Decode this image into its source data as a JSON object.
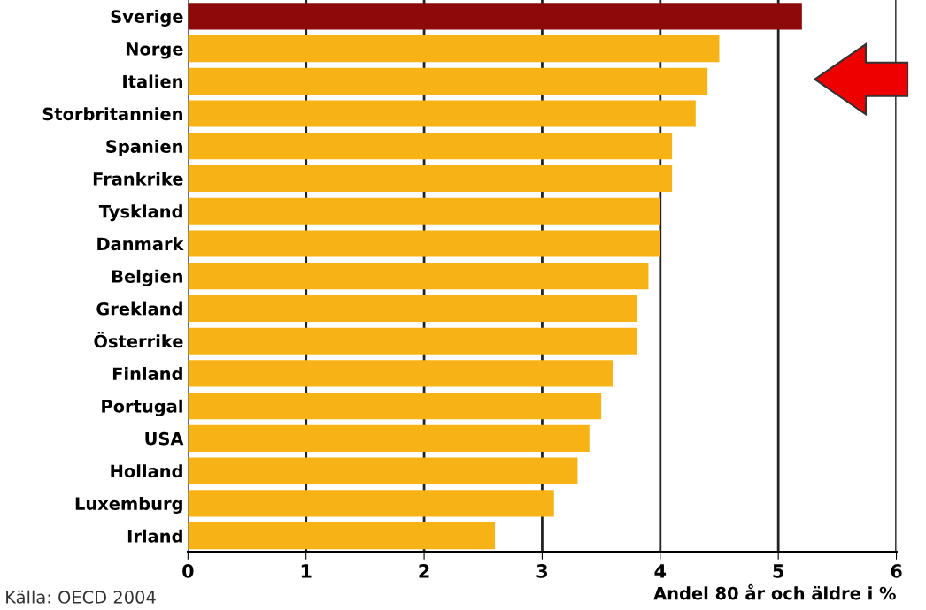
{
  "chart_data": {
    "type": "bar",
    "orientation": "horizontal",
    "categories": [
      "Sverige",
      "Norge",
      "Italien",
      "Storbritannien",
      "Spanien",
      "Frankrike",
      "Tyskland",
      "Danmark",
      "Belgien",
      "Grekland",
      "Österrike",
      "Finland",
      "Portugal",
      "USA",
      "Holland",
      "Luxemburg",
      "Irland"
    ],
    "values": [
      5.2,
      4.5,
      4.4,
      4.3,
      4.1,
      4.1,
      4.0,
      4.0,
      3.9,
      3.8,
      3.8,
      3.6,
      3.5,
      3.4,
      3.3,
      3.1,
      2.6
    ],
    "colors": [
      "#8e0a0a",
      "#f7b315",
      "#f7b315",
      "#f7b315",
      "#f7b315",
      "#f7b315",
      "#f7b315",
      "#f7b315",
      "#f7b315",
      "#f7b315",
      "#f7b315",
      "#f7b315",
      "#f7b315",
      "#f7b315",
      "#f7b315",
      "#f7b315",
      "#f7b315"
    ],
    "xlim": [
      0,
      6
    ],
    "xticks": [
      0,
      1,
      2,
      3,
      4,
      5,
      6
    ],
    "xlabel": "Andel 80 år och äldre i %",
    "grid": "x",
    "annotations": [
      "Källa: OECD 2004"
    ]
  }
}
